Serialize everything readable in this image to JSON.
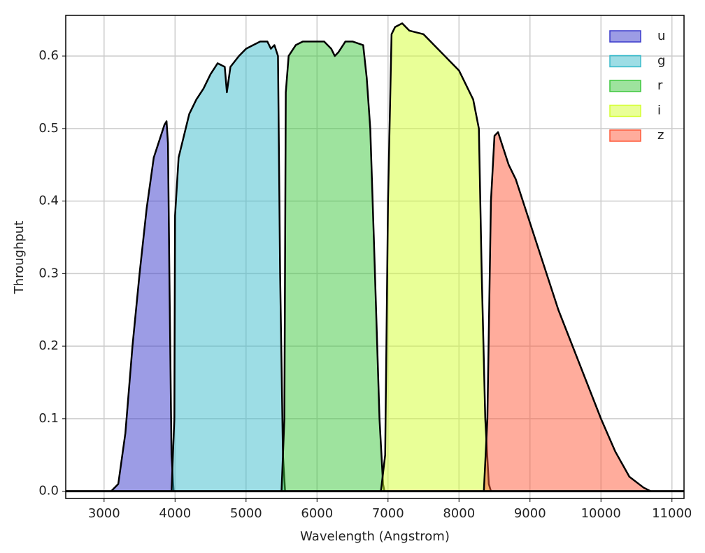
{
  "chart_data": {
    "type": "area",
    "xlabel": "Wavelength (Angstrom)",
    "ylabel": "Throughput",
    "xlim": [
      2460,
      11170
    ],
    "ylim": [
      -0.01,
      0.656
    ],
    "xticks": [
      3000,
      4000,
      5000,
      6000,
      7000,
      8000,
      9000,
      10000,
      11000
    ],
    "yticks": [
      {
        "value": 0,
        "label": "0.0"
      },
      0.1,
      0.2,
      0.3,
      0.4,
      0.5,
      0.6
    ],
    "grid": true,
    "legend": "upper right",
    "series": [
      {
        "name": "u",
        "color": "#3a3acc",
        "x": [
          3100,
          3200,
          3300,
          3350,
          3400,
          3500,
          3600,
          3700,
          3800,
          3850,
          3880,
          3900,
          3920,
          3950,
          3980
        ],
        "values": [
          0,
          0.01,
          0.08,
          0.14,
          0.2,
          0.3,
          0.39,
          0.46,
          0.49,
          0.505,
          0.51,
          0.48,
          0.3,
          0.05,
          0
        ]
      },
      {
        "name": "g",
        "color": "#3bbccc",
        "x": [
          3950,
          3990,
          4000,
          4050,
          4100,
          4200,
          4300,
          4400,
          4500,
          4600,
          4700,
          4730,
          4780,
          4900,
          5000,
          5100,
          5200,
          5300,
          5350,
          5400,
          5450,
          5480,
          5520,
          5550
        ],
        "values": [
          0,
          0.1,
          0.38,
          0.46,
          0.48,
          0.52,
          0.54,
          0.555,
          0.575,
          0.59,
          0.585,
          0.55,
          0.585,
          0.6,
          0.61,
          0.615,
          0.62,
          0.62,
          0.61,
          0.615,
          0.6,
          0.3,
          0.05,
          0
        ]
      },
      {
        "name": "r",
        "color": "#3dc73d",
        "x": [
          5500,
          5540,
          5560,
          5600,
          5700,
          5800,
          6000,
          6100,
          6200,
          6250,
          6300,
          6400,
          6500,
          6650,
          6700,
          6750,
          6800,
          6880,
          6930,
          6950
        ],
        "values": [
          0,
          0.1,
          0.55,
          0.6,
          0.615,
          0.62,
          0.62,
          0.62,
          0.61,
          0.6,
          0.605,
          0.62,
          0.62,
          0.615,
          0.57,
          0.5,
          0.35,
          0.1,
          0.01,
          0
        ]
      },
      {
        "name": "i",
        "color": "#d4ff30",
        "x": [
          6900,
          6960,
          7000,
          7050,
          7100,
          7200,
          7300,
          7500,
          7700,
          7900,
          8000,
          8100,
          8200,
          8280,
          8320,
          8370,
          8420,
          8450
        ],
        "values": [
          0,
          0.05,
          0.4,
          0.63,
          0.64,
          0.645,
          0.635,
          0.63,
          0.61,
          0.59,
          0.58,
          0.56,
          0.54,
          0.5,
          0.3,
          0.1,
          0.01,
          0
        ]
      },
      {
        "name": "z",
        "color": "#ff5a3a",
        "x": [
          8350,
          8400,
          8450,
          8500,
          8550,
          8700,
          8800,
          8900,
          9000,
          9200,
          9400,
          9600,
          9800,
          10000,
          10200,
          10400,
          10600,
          10700
        ],
        "values": [
          0,
          0.1,
          0.4,
          0.49,
          0.495,
          0.45,
          0.43,
          0.4,
          0.37,
          0.31,
          0.25,
          0.2,
          0.15,
          0.1,
          0.055,
          0.02,
          0.005,
          0
        ]
      }
    ]
  }
}
